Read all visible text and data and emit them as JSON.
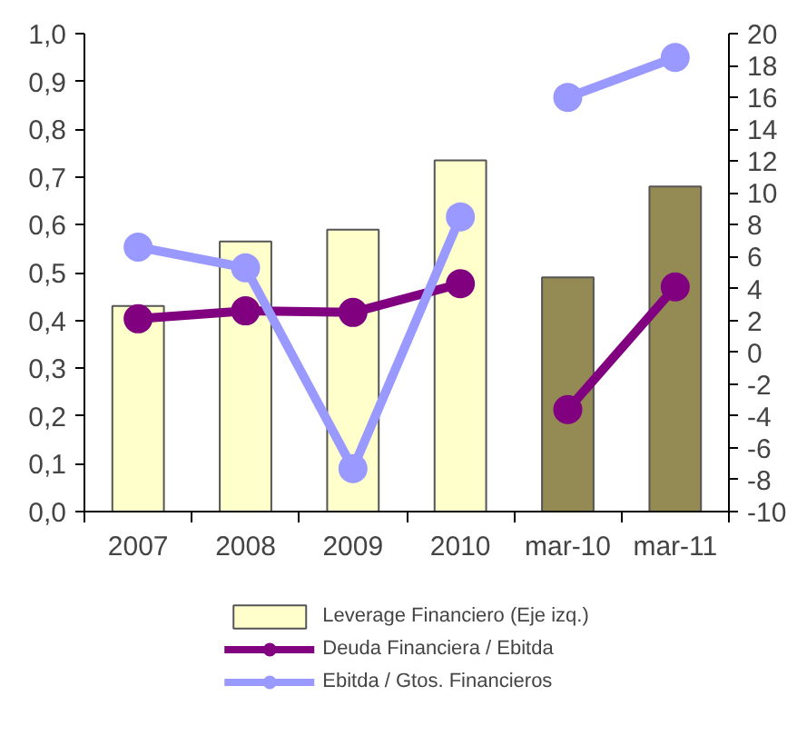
{
  "chart_data": {
    "type": "bar",
    "categories": [
      "2007",
      "2008",
      "2009",
      "2010",
      "mar-10",
      "mar-11"
    ],
    "series": [
      {
        "name": "Leverage Financiero (Eje izq.)",
        "type": "bar",
        "colors": [
          "#ffffcc",
          "#ffffcc",
          "#ffffcc",
          "#ffffcc",
          "#948a54",
          "#948a54"
        ],
        "values": [
          0.43,
          0.565,
          0.59,
          0.735,
          0.49,
          0.68
        ]
      },
      {
        "name": "Deuda Financiera / Ebitda",
        "type": "line",
        "axis": "y2",
        "color": "#800080",
        "values": [
          2.1,
          2.6,
          2.5,
          4.3,
          null,
          null
        ]
      },
      {
        "type": "line",
        "axis": "y2",
        "color": "#800080",
        "values": [
          null,
          null,
          null,
          null,
          -3.6,
          4.1
        ]
      },
      {
        "name": "Ebitda / Gtos. Financieros",
        "type": "line",
        "axis": "y2",
        "color": "#9999ff",
        "values": [
          6.6,
          5.3,
          -7.3,
          8.5,
          null,
          null
        ]
      },
      {
        "type": "line",
        "axis": "y2",
        "color": "#9999ff",
        "values": [
          null,
          null,
          null,
          null,
          16.0,
          18.5
        ]
      }
    ],
    "ylim": [
      0,
      1
    ],
    "yticks": [
      {
        "value": 0,
        "label": "0,0"
      },
      {
        "value": 0.1,
        "label": "0,1"
      },
      {
        "value": 0.2,
        "label": "0,2"
      },
      {
        "value": 0.3,
        "label": "0,3"
      },
      {
        "value": 0.4,
        "label": "0,4"
      },
      {
        "value": 0.5,
        "label": "0,5"
      },
      {
        "value": 0.6,
        "label": "0,6"
      },
      {
        "value": 0.7,
        "label": "0,7"
      },
      {
        "value": 0.8,
        "label": "0,8"
      },
      {
        "value": 0.9,
        "label": "0,9"
      },
      {
        "value": 1,
        "label": "1,0"
      }
    ],
    "y2lim": [
      -10,
      20
    ],
    "y2ticks": [
      -10,
      -8,
      -6,
      -4,
      -2,
      0,
      2,
      4,
      6,
      8,
      10,
      12,
      14,
      16,
      18,
      20
    ],
    "marker": "circle",
    "legend": "bottom",
    "grid": false
  }
}
